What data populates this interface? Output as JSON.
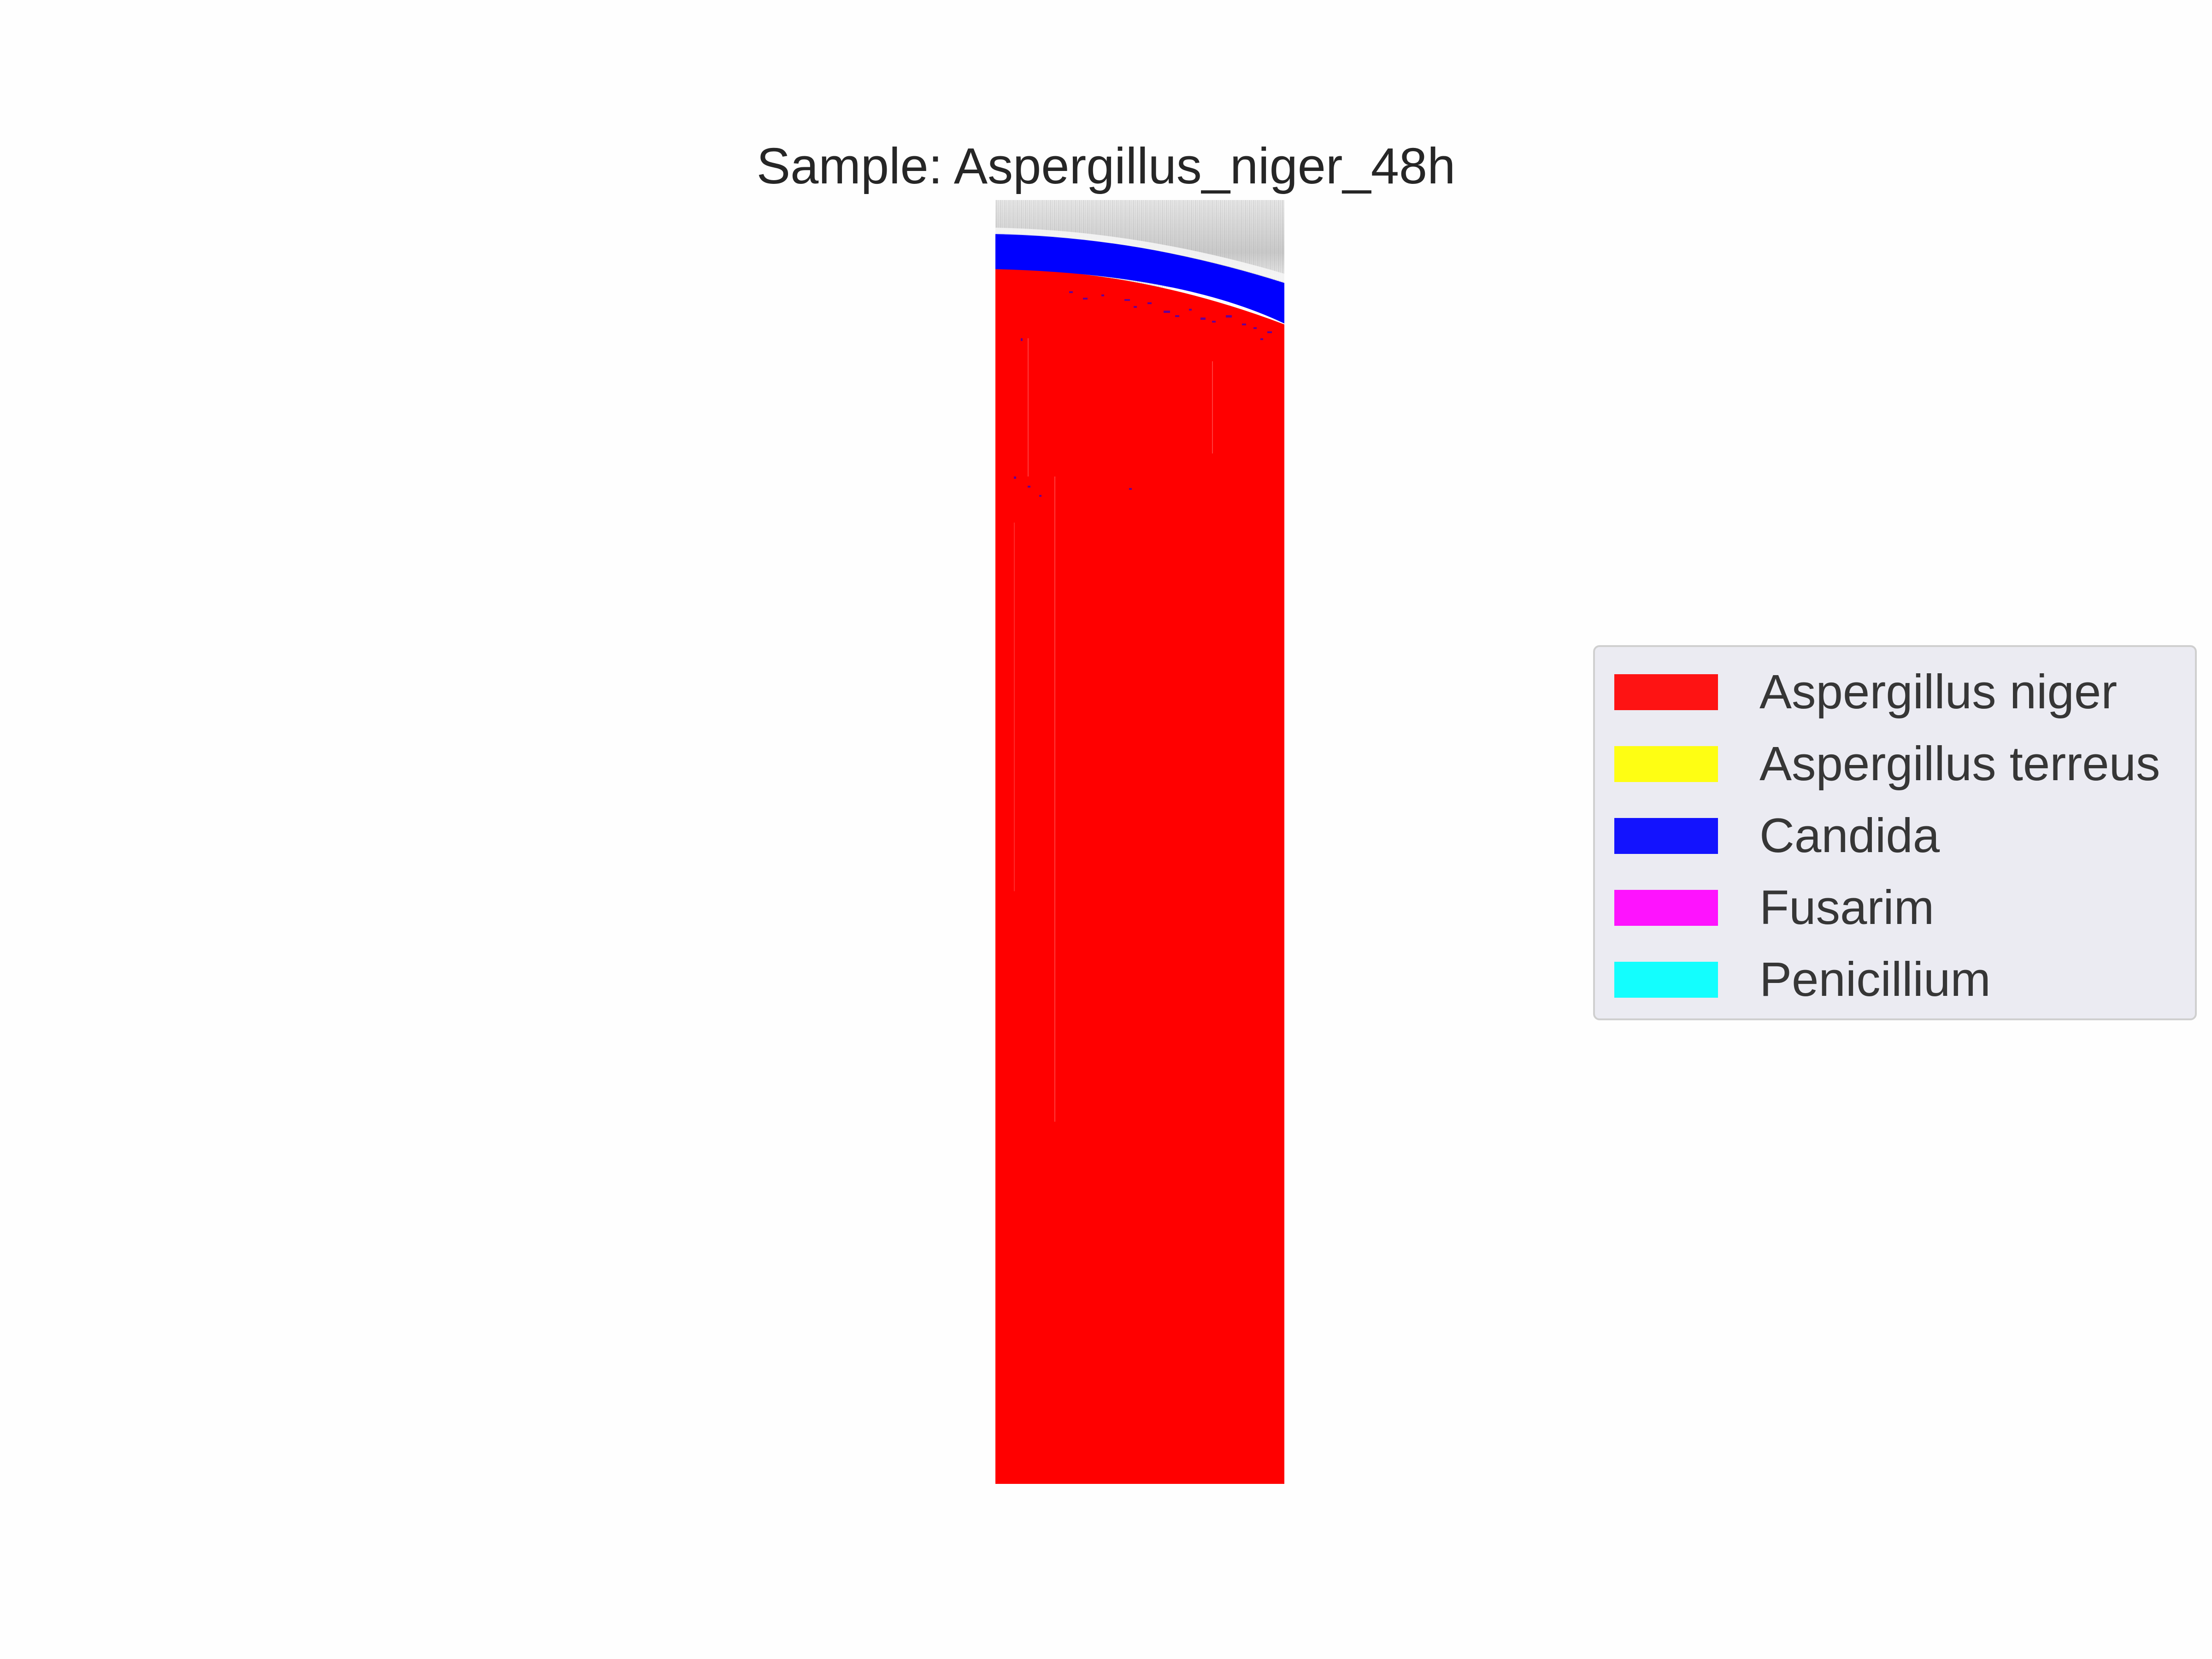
{
  "title": "Sample: Aspergillus_niger_48h",
  "legend": {
    "items": [
      {
        "label": "Aspergillus niger",
        "color": "#ff0000"
      },
      {
        "label": "Aspergillus terreus",
        "color": "#ffff00"
      },
      {
        "label": "Candida",
        "color": "#0000ff"
      },
      {
        "label": "Fusarim",
        "color": "#ff00ff"
      },
      {
        "label": "Penicillium",
        "color": "#00ffff"
      }
    ]
  },
  "classification_map": {
    "dominant_class": "Aspergillus niger",
    "classes_present": [
      "Aspergillus niger",
      "Candida"
    ]
  },
  "colors": {
    "background": "#fefefe",
    "legend_background": "#eaeaf2",
    "legend_border": "#cccccc",
    "text": "#262626",
    "unclassified_top": "#d8d8d8"
  }
}
